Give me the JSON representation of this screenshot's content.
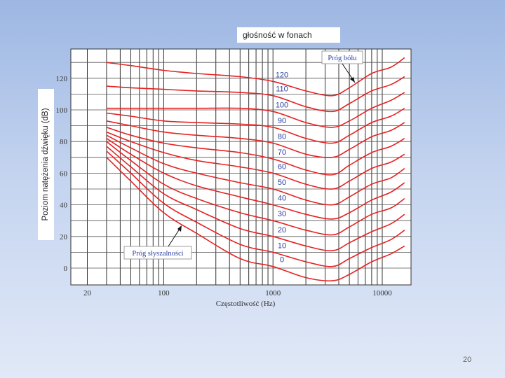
{
  "caption": "głośność w fonach",
  "page_number": "20",
  "chart_data": {
    "type": "line",
    "title": "",
    "xlabel": "Częstotliwość (Hz)",
    "ylabel": "Poziom natężenia dźwięku (dB)",
    "xscale": "log",
    "xlim": [
      10,
      20000
    ],
    "ylim": [
      -5,
      140
    ],
    "x_ticks": [
      20,
      100,
      1000,
      10000
    ],
    "x_tick_labels": [
      "20",
      "100",
      "1000",
      "10000"
    ],
    "y_ticks": [
      0,
      20,
      40,
      60,
      80,
      100,
      120
    ],
    "y_tick_labels": [
      "0",
      "20",
      "40",
      "60",
      "80",
      "100",
      "120"
    ],
    "grid": true,
    "line_color": "#e52222",
    "annotations": [
      {
        "text": "Próg bólu",
        "points_to_series": "120"
      },
      {
        "text": "Próg słyszalności",
        "points_to_series": "0"
      }
    ],
    "x": [
      30,
      50,
      100,
      200,
      500,
      1000,
      2000,
      3500,
      5000,
      8000,
      12000,
      16000
    ],
    "series": [
      {
        "name": "120",
        "values": [
          130,
          128,
          125,
          123,
          121,
          118,
          112,
          109,
          114,
          123,
          127,
          133
        ]
      },
      {
        "name": "110",
        "values": [
          115,
          114,
          113,
          112,
          111,
          109,
          102,
          99,
          104,
          112,
          116,
          121
        ]
      },
      {
        "name": "100",
        "values": [
          101,
          101,
          101,
          101,
          101,
          99,
          92,
          89,
          93,
          101,
          106,
          111
        ]
      },
      {
        "name": "90",
        "values": [
          98,
          96,
          93,
          92,
          91,
          89,
          82,
          79,
          84,
          92,
          96,
          101
        ]
      },
      {
        "name": "80",
        "values": [
          93,
          90,
          86,
          84,
          82,
          79,
          72,
          70,
          75,
          83,
          87,
          92
        ]
      },
      {
        "name": "70",
        "values": [
          89,
          84,
          79,
          76,
          73,
          69,
          62,
          59,
          65,
          73,
          77,
          82
        ]
      },
      {
        "name": "60",
        "values": [
          86,
          80,
          73,
          68,
          64,
          60,
          53,
          50,
          55,
          63,
          67,
          72
        ]
      },
      {
        "name": "50",
        "values": [
          84,
          76,
          66,
          60,
          54,
          50,
          43,
          40,
          45,
          53,
          57,
          63
        ]
      },
      {
        "name": "40",
        "values": [
          82,
          72,
          60,
          52,
          45,
          40,
          34,
          31,
          35,
          43,
          48,
          54
        ]
      },
      {
        "name": "30",
        "values": [
          80,
          68,
          53,
          44,
          35,
          30,
          24,
          21,
          26,
          34,
          38,
          44
        ]
      },
      {
        "name": "20",
        "values": [
          77,
          64,
          47,
          37,
          25,
          20,
          14,
          11,
          16,
          23,
          28,
          34
        ]
      },
      {
        "name": "10",
        "values": [
          74,
          60,
          41,
          29,
          15,
          10,
          4,
          1,
          6,
          13,
          18,
          24
        ]
      },
      {
        "name": "0",
        "values": [
          70,
          55,
          35,
          22,
          6,
          1,
          -6,
          -8,
          -4,
          4,
          9,
          14
        ]
      }
    ]
  }
}
